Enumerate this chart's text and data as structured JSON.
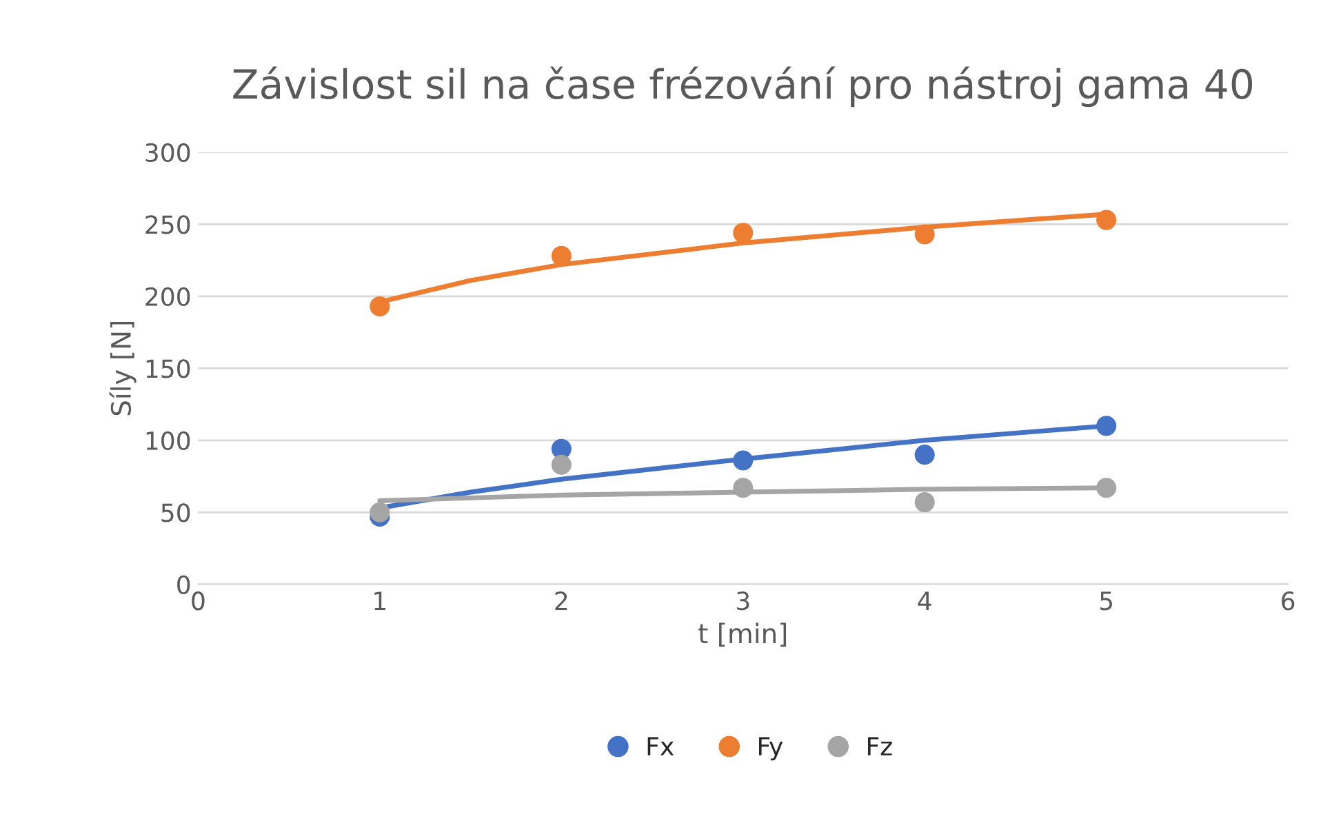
{
  "chart_data": {
    "type": "scatter",
    "title": "Závislost sil na čase frézování pro nástroj gama 40",
    "xlabel": "t [min]",
    "ylabel": "Síly [N]",
    "x": [
      1,
      2,
      3,
      4,
      5
    ],
    "series": [
      {
        "name": "Fx",
        "color": "#4472c4",
        "values": [
          47,
          94,
          86,
          90,
          110
        ],
        "marker": "circle"
      },
      {
        "name": "Fy",
        "color": "#ed7d31",
        "values": [
          193,
          228,
          244,
          243,
          253
        ],
        "marker": "circle"
      },
      {
        "name": "Fz",
        "color": "#a5a5a5",
        "values": [
          50,
          83,
          67,
          57,
          67
        ],
        "marker": "circle"
      },
      {
        "type": "line",
        "color": "#4472c4",
        "x": [
          1,
          1.5,
          2,
          3,
          4,
          5
        ],
        "values": [
          53,
          64,
          73,
          87,
          100,
          110
        ],
        "marker": "none"
      },
      {
        "type": "line",
        "color": "#ed7d31",
        "x": [
          1,
          1.5,
          2,
          3,
          4,
          5
        ],
        "values": [
          196,
          211,
          222,
          237,
          248,
          257
        ],
        "marker": "none"
      },
      {
        "type": "line",
        "color": "#a5a5a5",
        "x": [
          1,
          1.5,
          2,
          3,
          4,
          5
        ],
        "values": [
          58,
          60,
          62,
          64,
          66,
          67
        ],
        "marker": "none"
      }
    ],
    "xlim": [
      0,
      6
    ],
    "xticks": [
      0,
      1,
      2,
      3,
      4,
      5,
      6
    ],
    "ylim": [
      0,
      300
    ],
    "yticks": [
      0,
      50,
      100,
      150,
      200,
      250,
      300
    ],
    "grid": "y",
    "legend": "bottom"
  }
}
